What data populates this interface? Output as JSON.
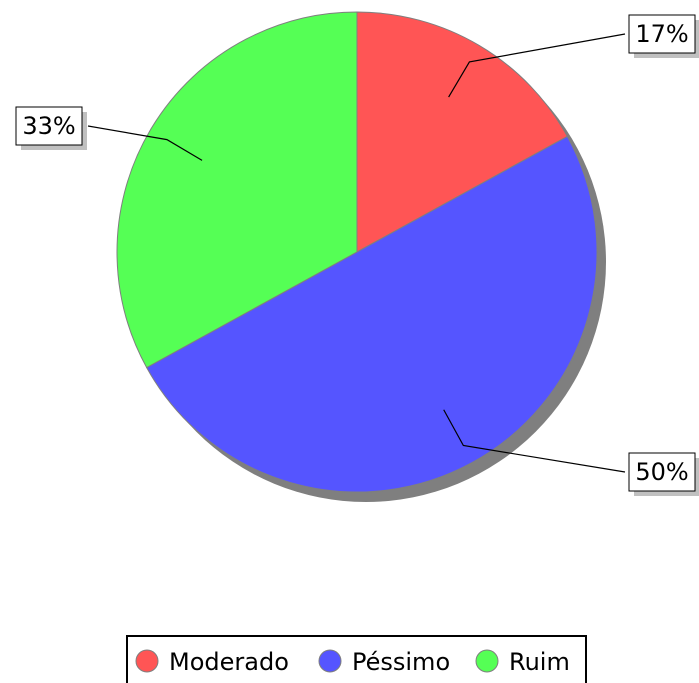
{
  "chart_data": {
    "type": "pie",
    "categories": [
      "Moderado",
      "Péssimo",
      "Ruim"
    ],
    "values": [
      17,
      50,
      33
    ],
    "labels": [
      "17%",
      "50%",
      "33%"
    ],
    "colors": [
      "#ff5555",
      "#5555ff",
      "#55ff55"
    ],
    "start_angle": "12 o'clock",
    "direction": "clockwise",
    "legend_position": "bottom"
  }
}
